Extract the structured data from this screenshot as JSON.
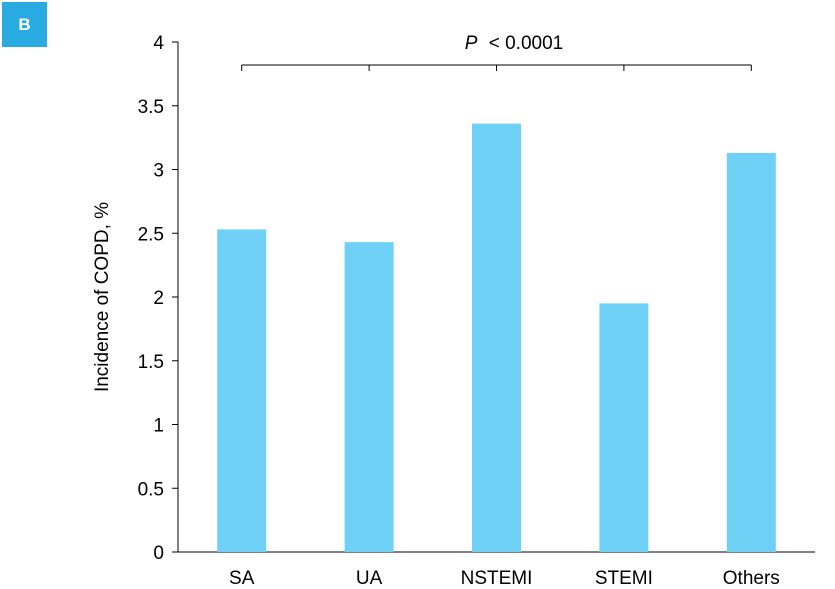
{
  "panel_label": "B",
  "colors": {
    "bar": "#6FD0F6",
    "badge": "#29ABE2",
    "axis": "#000000"
  },
  "chart_data": {
    "type": "bar",
    "categories": [
      "SA",
      "UA",
      "NSTEMI",
      "STEMI",
      "Others"
    ],
    "values": [
      2.53,
      2.43,
      3.36,
      1.95,
      3.13
    ],
    "ylabel": "Incidence of COPD, %",
    "xlabel": "",
    "ylim": [
      0,
      4
    ],
    "yticks": [
      "0",
      "0.5",
      "1",
      "1.5",
      "2",
      "2.5",
      "3",
      "3.5",
      "4"
    ],
    "grid": false,
    "annotation": {
      "p_symbol": "P",
      "relation": "<",
      "value": "0.0001"
    }
  }
}
